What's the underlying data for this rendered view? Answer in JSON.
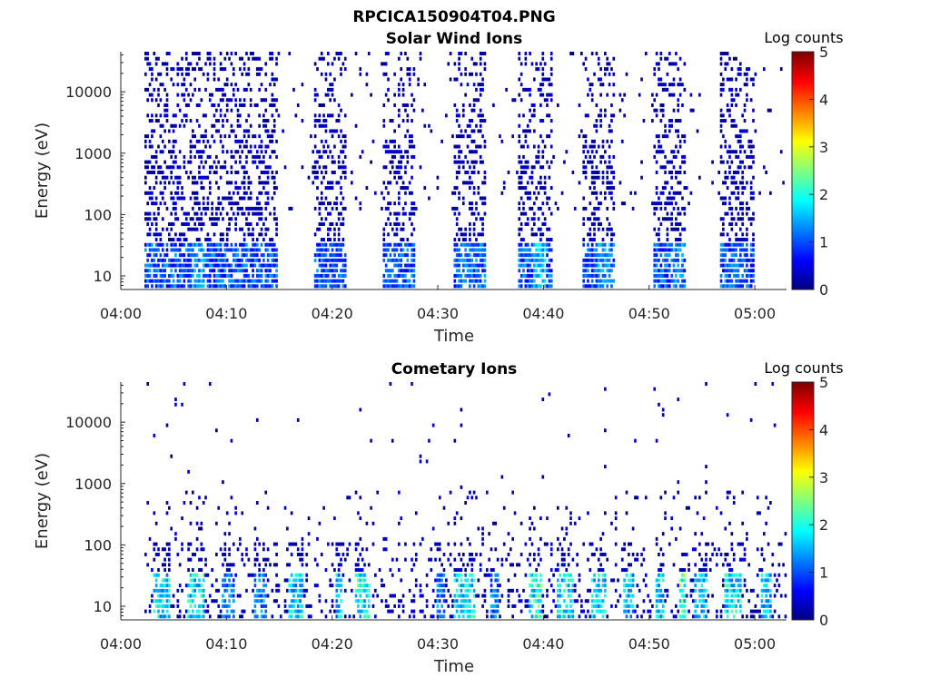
{
  "figure": {
    "title": "RPCICA150904T04.PNG"
  },
  "colorbar_colors": [
    "#00007f",
    "#0000ff",
    "#007fff",
    "#00ffff",
    "#7fff7f",
    "#ffff00",
    "#ff7f00",
    "#ff0000",
    "#7f0000"
  ],
  "chart_data": [
    {
      "type": "heatmap",
      "title": "Solar Wind Ions",
      "xlabel": "Time",
      "ylabel": "Energy (eV)",
      "y_scale": "log",
      "y_ticks": [
        "10",
        "100",
        "1000",
        "10000"
      ],
      "x_ticks": [
        "04:00",
        "04:10",
        "04:20",
        "04:30",
        "04:40",
        "04:50",
        "05:00"
      ],
      "xlim": [
        "04:00",
        "05:03"
      ],
      "ylim": [
        6,
        45000
      ],
      "colorbar": {
        "label": "Log counts",
        "range": [
          0,
          5
        ],
        "ticks": [
          "0",
          "1",
          "2",
          "3",
          "4",
          "5"
        ]
      },
      "bursts": [
        {
          "start": 2.3,
          "end": 14.9,
          "intensity": 1.6,
          "peak": 7.3
        },
        {
          "start": 18.2,
          "end": 21.3,
          "intensity": 1.1,
          "peak": 20.1
        },
        {
          "start": 24.7,
          "end": 27.8,
          "intensity": 1.2,
          "peak": 25.6
        },
        {
          "start": 31.4,
          "end": 34.5,
          "intensity": 1.4,
          "peak": 32.8
        },
        {
          "start": 37.6,
          "end": 40.8,
          "intensity": 1.8,
          "peak": 39.7
        },
        {
          "start": 43.6,
          "end": 46.8,
          "intensity": 1.6,
          "peak": 45.8
        },
        {
          "start": 50.5,
          "end": 53.5,
          "intensity": 1.5,
          "peak": 52.7
        },
        {
          "start": 56.8,
          "end": 59.9,
          "intensity": 1.3,
          "peak": 58.6
        }
      ]
    },
    {
      "type": "heatmap",
      "title": "Cometary Ions",
      "xlabel": "Time",
      "ylabel": "Energy (eV)",
      "y_scale": "log",
      "y_ticks": [
        "10",
        "100",
        "1000",
        "10000"
      ],
      "x_ticks": [
        "04:00",
        "04:10",
        "04:20",
        "04:30",
        "04:40",
        "04:50",
        "05:00"
      ],
      "xlim": [
        "04:00",
        "05:03"
      ],
      "ylim": [
        6,
        45000
      ],
      "colorbar": {
        "label": "Log counts",
        "range": [
          0,
          5
        ],
        "ticks": [
          "0",
          "1",
          "2",
          "3",
          "4",
          "5"
        ]
      },
      "bursts": [
        {
          "start": 3.0,
          "end": 4.6,
          "intensity": 2.2,
          "peak": 3.8
        },
        {
          "start": 6.2,
          "end": 8.0,
          "intensity": 2.3,
          "peak": 7.2
        },
        {
          "start": 9.6,
          "end": 10.8,
          "intensity": 1.6,
          "peak": 10.2
        },
        {
          "start": 12.6,
          "end": 13.8,
          "intensity": 1.7,
          "peak": 13.2
        },
        {
          "start": 15.8,
          "end": 17.2,
          "intensity": 2.1,
          "peak": 16.4
        },
        {
          "start": 20.3,
          "end": 20.9,
          "intensity": 2.0,
          "peak": 20.6
        },
        {
          "start": 22.2,
          "end": 23.6,
          "intensity": 2.4,
          "peak": 22.8
        },
        {
          "start": 29.8,
          "end": 30.6,
          "intensity": 1.6,
          "peak": 30.2
        },
        {
          "start": 31.6,
          "end": 33.6,
          "intensity": 2.3,
          "peak": 32.8
        },
        {
          "start": 35.0,
          "end": 35.8,
          "intensity": 1.5,
          "peak": 35.4
        },
        {
          "start": 38.6,
          "end": 39.8,
          "intensity": 2.5,
          "peak": 39.2
        },
        {
          "start": 41.2,
          "end": 42.8,
          "intensity": 2.3,
          "peak": 42.0
        },
        {
          "start": 44.6,
          "end": 46.0,
          "intensity": 2.2,
          "peak": 45.4
        },
        {
          "start": 47.6,
          "end": 48.6,
          "intensity": 2.0,
          "peak": 48.2
        },
        {
          "start": 50.6,
          "end": 51.4,
          "intensity": 2.1,
          "peak": 51.0
        },
        {
          "start": 52.8,
          "end": 53.4,
          "intensity": 2.7,
          "peak": 53.1
        },
        {
          "start": 54.2,
          "end": 55.4,
          "intensity": 2.0,
          "peak": 54.8
        },
        {
          "start": 57.2,
          "end": 58.8,
          "intensity": 2.3,
          "peak": 58.0
        },
        {
          "start": 60.6,
          "end": 61.6,
          "intensity": 2.0,
          "peak": 61.2
        }
      ]
    }
  ]
}
